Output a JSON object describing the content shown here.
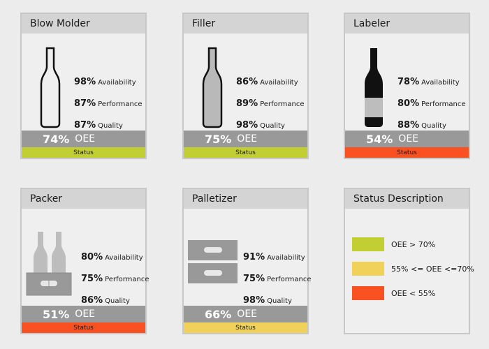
{
  "colors": {
    "green": "#c2cf32",
    "yellow": "#f0d25a",
    "red": "#fa5123"
  },
  "cards": [
    {
      "title": "Blow Molder",
      "icon": "empty-bottle-outline-icon",
      "metrics": [
        {
          "pct": "98%",
          "label": "Availability"
        },
        {
          "pct": "87%",
          "label": "Performance"
        },
        {
          "pct": "87%",
          "label": "Quality"
        }
      ],
      "oee_pct": "74%",
      "oee_label": "OEE",
      "status_label": "Status",
      "status_color": "green"
    },
    {
      "title": "Filler",
      "icon": "filled-bottle-icon",
      "metrics": [
        {
          "pct": "86%",
          "label": "Availability"
        },
        {
          "pct": "89%",
          "label": "Performance"
        },
        {
          "pct": "98%",
          "label": "Quality"
        }
      ],
      "oee_pct": "75%",
      "oee_label": "OEE",
      "status_label": "Status",
      "status_color": "green"
    },
    {
      "title": "Labeler",
      "icon": "labeled-bottle-icon",
      "metrics": [
        {
          "pct": "78%",
          "label": "Availability"
        },
        {
          "pct": "80%",
          "label": "Performance"
        },
        {
          "pct": "88%",
          "label": "Quality"
        }
      ],
      "oee_pct": "54%",
      "oee_label": "OEE",
      "status_label": "Status",
      "status_color": "red"
    },
    {
      "title": "Packer",
      "icon": "bottle-pack-icon",
      "metrics": [
        {
          "pct": "80%",
          "label": "Availability"
        },
        {
          "pct": "75%",
          "label": "Performance"
        },
        {
          "pct": "86%",
          "label": "Quality"
        }
      ],
      "oee_pct": "51%",
      "oee_label": "OEE",
      "status_label": "Status",
      "status_color": "red"
    },
    {
      "title": "Palletizer",
      "icon": "stacked-pallet-icon",
      "metrics": [
        {
          "pct": "91%",
          "label": "Availability"
        },
        {
          "pct": "75%",
          "label": "Performance"
        },
        {
          "pct": "98%",
          "label": "Quality"
        }
      ],
      "oee_pct": "66%",
      "oee_label": "OEE",
      "status_label": "Status",
      "status_color": "yellow"
    }
  ],
  "legend": {
    "title": "Status Description",
    "items": [
      {
        "color": "green",
        "text": "OEE > 70%"
      },
      {
        "color": "yellow",
        "text": "55% <= OEE <=70%"
      },
      {
        "color": "red",
        "text": "OEE < 55%"
      }
    ]
  }
}
